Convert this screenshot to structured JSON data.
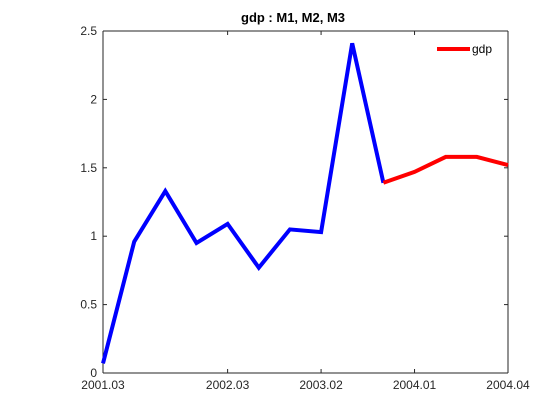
{
  "chart_data": {
    "type": "line",
    "title": "gdp : M1, M2, M3",
    "xlabel": "",
    "ylabel": "",
    "xlim": [
      1,
      14
    ],
    "ylim": [
      0,
      2.5
    ],
    "x_ticks": [
      {
        "x": 1,
        "label": "2001.03"
      },
      {
        "x": 5,
        "label": "2002.03"
      },
      {
        "x": 8,
        "label": "2003.02"
      },
      {
        "x": 11,
        "label": "2004.01"
      },
      {
        "x": 14,
        "label": "2004.04"
      }
    ],
    "y_ticks": [
      0,
      0.5,
      1,
      1.5,
      2,
      2.5
    ],
    "grid": false,
    "legend_position": "top-right",
    "legend_entries": [
      "gdp"
    ],
    "series": [
      {
        "color": "#0000ff",
        "x": [
          1,
          2,
          3,
          4,
          5,
          6,
          7,
          8,
          9,
          10
        ],
        "values": [
          0.07,
          0.96,
          1.33,
          0.95,
          1.09,
          0.77,
          1.05,
          1.03,
          2.41,
          1.39
        ]
      },
      {
        "name": "gdp",
        "color": "#ff0000",
        "x": [
          10,
          11,
          12,
          13,
          14
        ],
        "values": [
          1.39,
          1.47,
          1.58,
          1.58,
          1.52
        ]
      }
    ]
  }
}
